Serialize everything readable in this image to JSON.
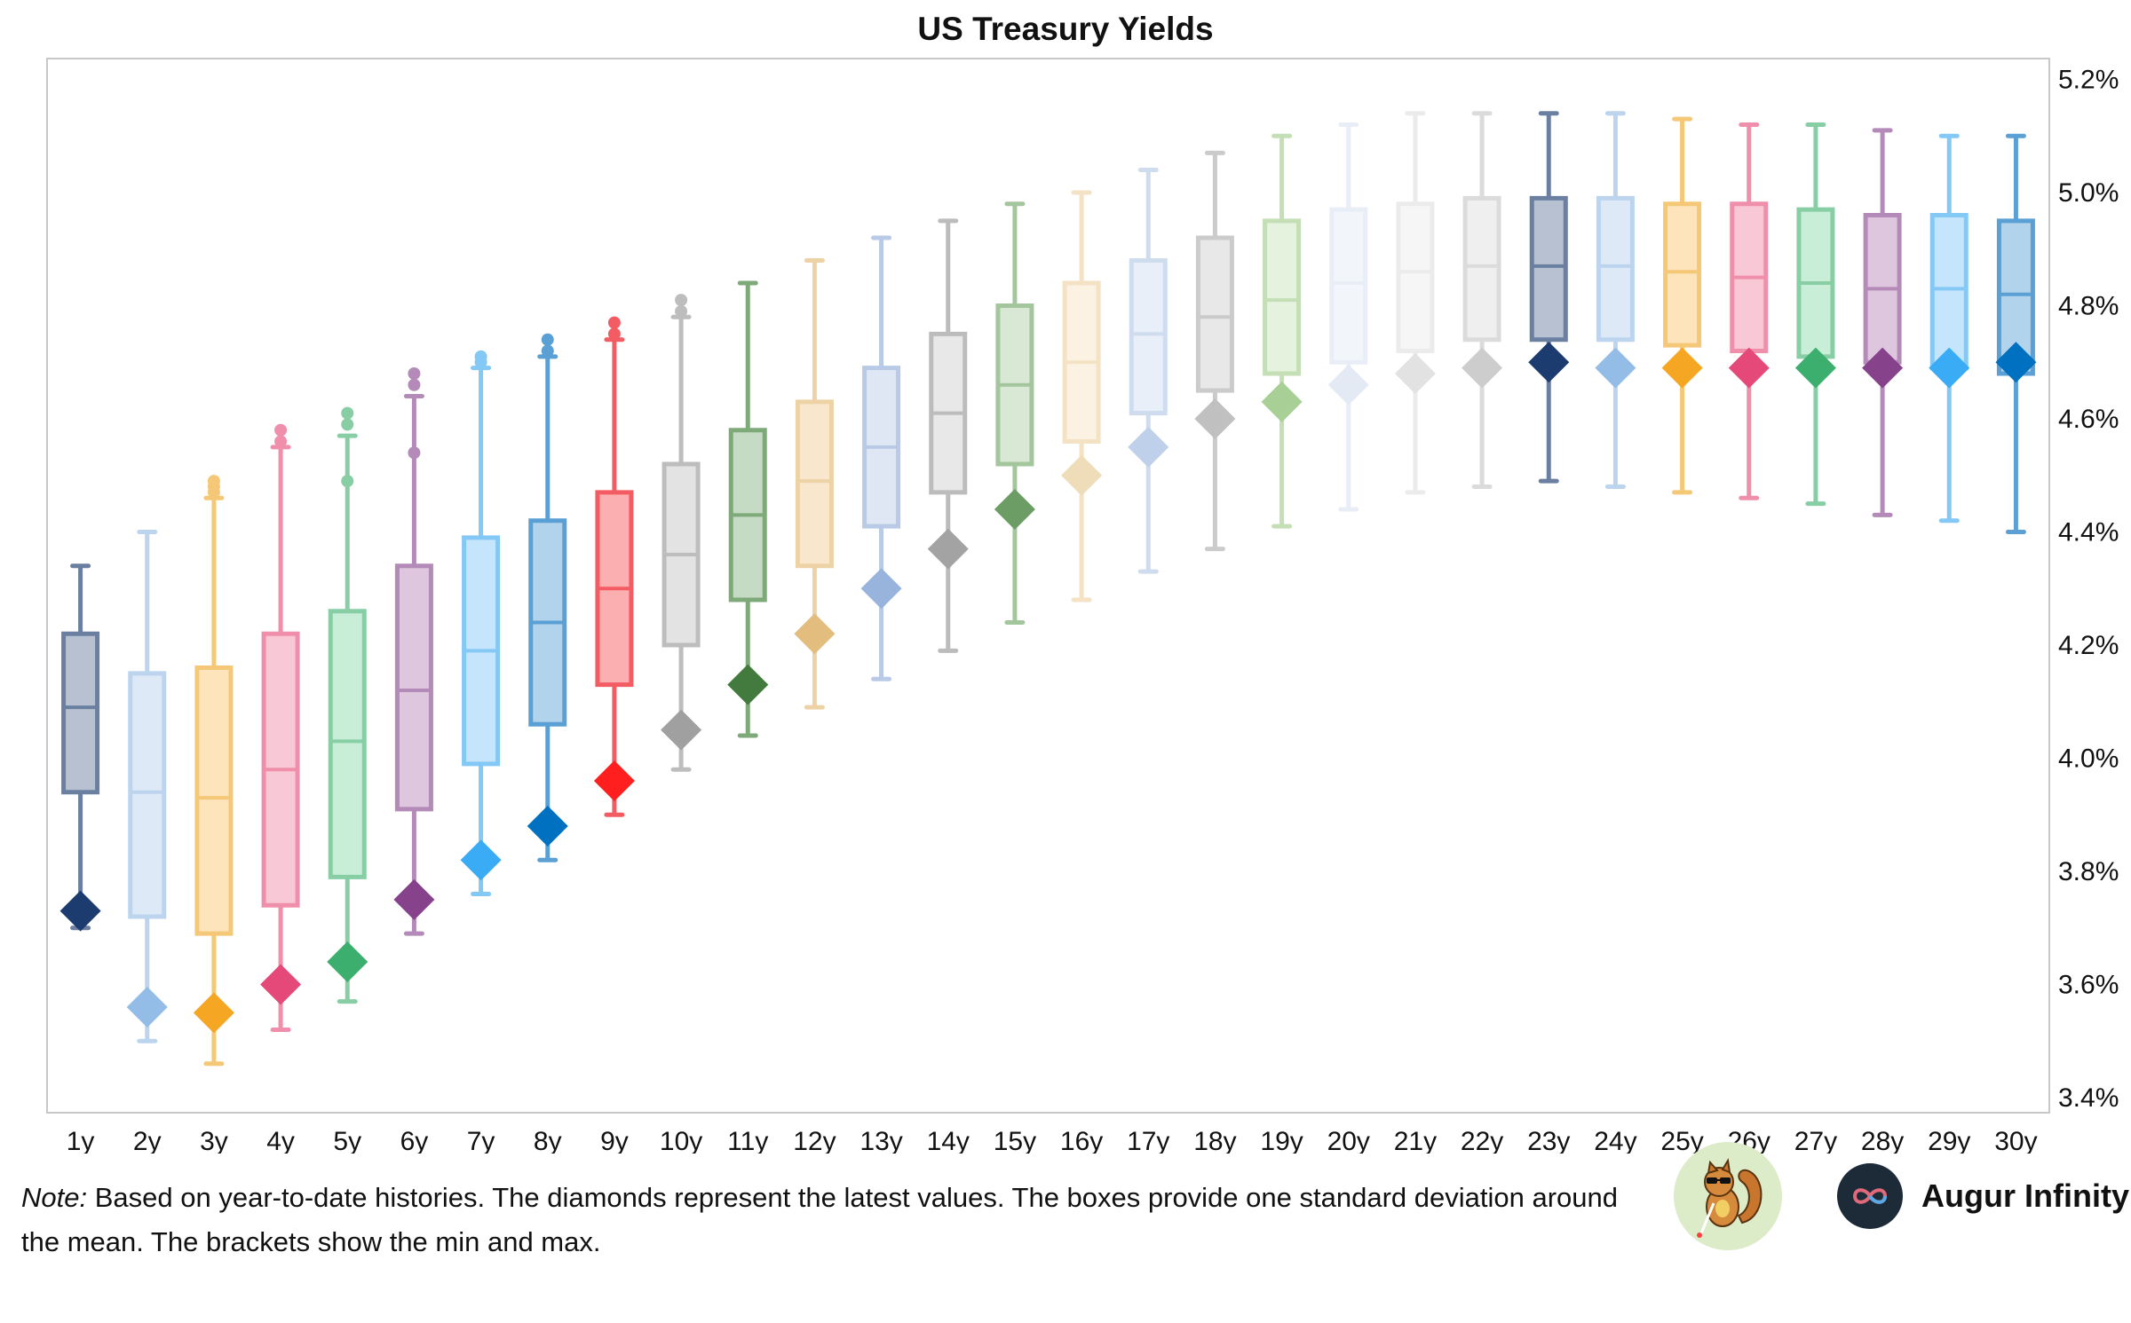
{
  "chart_data": {
    "type": "box",
    "title": "US Treasury Yields",
    "categories": [
      "1y",
      "2y",
      "3y",
      "4y",
      "5y",
      "6y",
      "7y",
      "8y",
      "9y",
      "10y",
      "11y",
      "12y",
      "13y",
      "14y",
      "15y",
      "16y",
      "17y",
      "18y",
      "19y",
      "20y",
      "21y",
      "22y",
      "23y",
      "24y",
      "25y",
      "26y",
      "27y",
      "28y",
      "29y",
      "30y"
    ],
    "y_ticks": [
      "3.4%",
      "3.6%",
      "3.8%",
      "4.0%",
      "4.2%",
      "4.4%",
      "4.6%",
      "4.8%",
      "5.0%",
      "5.2%"
    ],
    "ylim": [
      3.4,
      5.22
    ],
    "y_axis_side": "right",
    "grid": false,
    "series": [
      {
        "min": 3.7,
        "max": 4.34,
        "q1": 3.94,
        "mean": 4.09,
        "q3": 4.22,
        "latest": 3.73,
        "outliers": []
      },
      {
        "min": 3.5,
        "max": 4.4,
        "q1": 3.72,
        "mean": 3.94,
        "q3": 4.15,
        "latest": 3.56,
        "outliers": []
      },
      {
        "min": 3.46,
        "max": 4.46,
        "q1": 3.69,
        "mean": 3.93,
        "q3": 4.16,
        "latest": 3.55,
        "outliers": [
          4.47,
          4.48,
          4.49
        ]
      },
      {
        "min": 3.52,
        "max": 4.55,
        "q1": 3.74,
        "mean": 3.98,
        "q3": 4.22,
        "latest": 3.6,
        "outliers": [
          4.56,
          4.58
        ]
      },
      {
        "min": 3.57,
        "max": 4.57,
        "q1": 3.79,
        "mean": 4.03,
        "q3": 4.26,
        "latest": 3.64,
        "outliers": [
          4.49,
          4.59,
          4.61
        ]
      },
      {
        "min": 3.69,
        "max": 4.64,
        "q1": 3.91,
        "mean": 4.12,
        "q3": 4.34,
        "latest": 3.75,
        "outliers": [
          4.54,
          4.66,
          4.68
        ]
      },
      {
        "min": 3.76,
        "max": 4.69,
        "q1": 3.99,
        "mean": 4.19,
        "q3": 4.39,
        "latest": 3.82,
        "outliers": [
          4.7,
          4.71
        ]
      },
      {
        "min": 3.82,
        "max": 4.71,
        "q1": 4.06,
        "mean": 4.24,
        "q3": 4.42,
        "latest": 3.88,
        "outliers": [
          4.72,
          4.74
        ]
      },
      {
        "min": 3.9,
        "max": 4.74,
        "q1": 4.13,
        "mean": 4.3,
        "q3": 4.47,
        "latest": 3.96,
        "outliers": [
          4.75,
          4.77
        ]
      },
      {
        "min": 3.98,
        "max": 4.78,
        "q1": 4.2,
        "mean": 4.36,
        "q3": 4.52,
        "latest": 4.05,
        "outliers": [
          4.79,
          4.81
        ]
      },
      {
        "min": 4.04,
        "max": 4.84,
        "q1": 4.28,
        "mean": 4.43,
        "q3": 4.58,
        "latest": 4.13,
        "outliers": []
      },
      {
        "min": 4.09,
        "max": 4.88,
        "q1": 4.34,
        "mean": 4.49,
        "q3": 4.63,
        "latest": 4.22,
        "outliers": []
      },
      {
        "min": 4.14,
        "max": 4.92,
        "q1": 4.41,
        "mean": 4.55,
        "q3": 4.69,
        "latest": 4.3,
        "outliers": []
      },
      {
        "min": 4.19,
        "max": 4.95,
        "q1": 4.47,
        "mean": 4.61,
        "q3": 4.75,
        "latest": 4.37,
        "outliers": []
      },
      {
        "min": 4.24,
        "max": 4.98,
        "q1": 4.52,
        "mean": 4.66,
        "q3": 4.8,
        "latest": 4.44,
        "outliers": []
      },
      {
        "min": 4.28,
        "max": 5.0,
        "q1": 4.56,
        "mean": 4.7,
        "q3": 4.84,
        "latest": 4.5,
        "outliers": []
      },
      {
        "min": 4.33,
        "max": 5.04,
        "q1": 4.61,
        "mean": 4.75,
        "q3": 4.88,
        "latest": 4.55,
        "outliers": []
      },
      {
        "min": 4.37,
        "max": 5.07,
        "q1": 4.65,
        "mean": 4.78,
        "q3": 4.92,
        "latest": 4.6,
        "outliers": []
      },
      {
        "min": 4.41,
        "max": 5.1,
        "q1": 4.68,
        "mean": 4.81,
        "q3": 4.95,
        "latest": 4.63,
        "outliers": []
      },
      {
        "min": 4.44,
        "max": 5.12,
        "q1": 4.7,
        "mean": 4.84,
        "q3": 4.97,
        "latest": 4.66,
        "outliers": []
      },
      {
        "min": 4.47,
        "max": 5.14,
        "q1": 4.72,
        "mean": 4.86,
        "q3": 4.98,
        "latest": 4.68,
        "outliers": []
      },
      {
        "min": 4.48,
        "max": 5.14,
        "q1": 4.74,
        "mean": 4.87,
        "q3": 4.99,
        "latest": 4.69,
        "outliers": []
      },
      {
        "min": 4.49,
        "max": 5.14,
        "q1": 4.74,
        "mean": 4.87,
        "q3": 4.99,
        "latest": 4.7,
        "outliers": []
      },
      {
        "min": 4.48,
        "max": 5.14,
        "q1": 4.74,
        "mean": 4.87,
        "q3": 4.99,
        "latest": 4.69,
        "outliers": []
      },
      {
        "min": 4.47,
        "max": 5.13,
        "q1": 4.73,
        "mean": 4.86,
        "q3": 4.98,
        "latest": 4.69,
        "outliers": []
      },
      {
        "min": 4.46,
        "max": 5.12,
        "q1": 4.72,
        "mean": 4.85,
        "q3": 4.98,
        "latest": 4.69,
        "outliers": []
      },
      {
        "min": 4.45,
        "max": 5.12,
        "q1": 4.71,
        "mean": 4.84,
        "q3": 4.97,
        "latest": 4.69,
        "outliers": []
      },
      {
        "min": 4.43,
        "max": 5.11,
        "q1": 4.7,
        "mean": 4.83,
        "q3": 4.96,
        "latest": 4.69,
        "outliers": []
      },
      {
        "min": 4.42,
        "max": 5.1,
        "q1": 4.69,
        "mean": 4.83,
        "q3": 4.96,
        "latest": 4.69,
        "outliers": []
      },
      {
        "min": 4.4,
        "max": 5.1,
        "q1": 4.68,
        "mean": 4.82,
        "q3": 4.95,
        "latest": 4.7,
        "outliers": []
      }
    ]
  },
  "colors": {
    "line": [
      "#6b7fa0",
      "#bcd4ee",
      "#f5c878",
      "#ef8fab",
      "#88cea5",
      "#b48ab8",
      "#84c8f5",
      "#5aa0d4",
      "#f35c62",
      "#bdbdbd",
      "#7eaa79",
      "#edd2a6",
      "#b8cae6",
      "#bcbcbc",
      "#a3c69c",
      "#f3e2c4",
      "#cfdcee",
      "#cbcbcb",
      "#c4deb6",
      "#e9eef6",
      "#ebebeb",
      "#dbdbdb",
      "#6b7fa0",
      "#bcd4ee",
      "#f5c878",
      "#ef8fab",
      "#88cea5",
      "#b48ab8",
      "#84c8f5",
      "#5aa0d4"
    ],
    "fill": [
      "#b8c1d1",
      "#dde9f6",
      "#fde4bb",
      "#f8c8d6",
      "#c8eed8",
      "#dfc6df",
      "#c4e5fb",
      "#b2d3ec",
      "#fcafb1",
      "#e3e3e3",
      "#c5dbc4",
      "#f8e7cd",
      "#dfe7f4",
      "#e8e8e8",
      "#d8e8d4",
      "#fcf2e4",
      "#e9eff8",
      "#e8e8e8",
      "#e5f2dd",
      "#f2f5fa",
      "#f6f6f6",
      "#efefef",
      "#b8c1d1",
      "#dde9f6",
      "#fde4bb",
      "#f8c8d6",
      "#c8eed8",
      "#dfc6df",
      "#c4e5fb",
      "#b2d3ec"
    ],
    "diamond": [
      "#1c3b6e",
      "#93bde6",
      "#f5a623",
      "#e5497a",
      "#3caf6e",
      "#86438c",
      "#3aabf5",
      "#0070c0",
      "#ff1f1f",
      "#a0a0a0",
      "#437a3e",
      "#e2bd7e",
      "#99b4dc",
      "#a3a3a3",
      "#6b9d64",
      "#efdcb8",
      "#bed0ea",
      "#c0c0c0",
      "#a8cf95",
      "#e4eaf4",
      "#e2e2e2",
      "#cdcdcd",
      "#1c3b6e",
      "#93bde6",
      "#f5a623",
      "#e5497a",
      "#3caf6e",
      "#86438c",
      "#3aabf5",
      "#0070c0"
    ]
  },
  "footer": {
    "note_label": "Note:",
    "note_text": "Based on year-to-date histories. The diamonds represent the latest values. The boxes provide one standard deviation around the mean. The brackets show the min and max.",
    "brand_name": "Augur Infinity"
  }
}
